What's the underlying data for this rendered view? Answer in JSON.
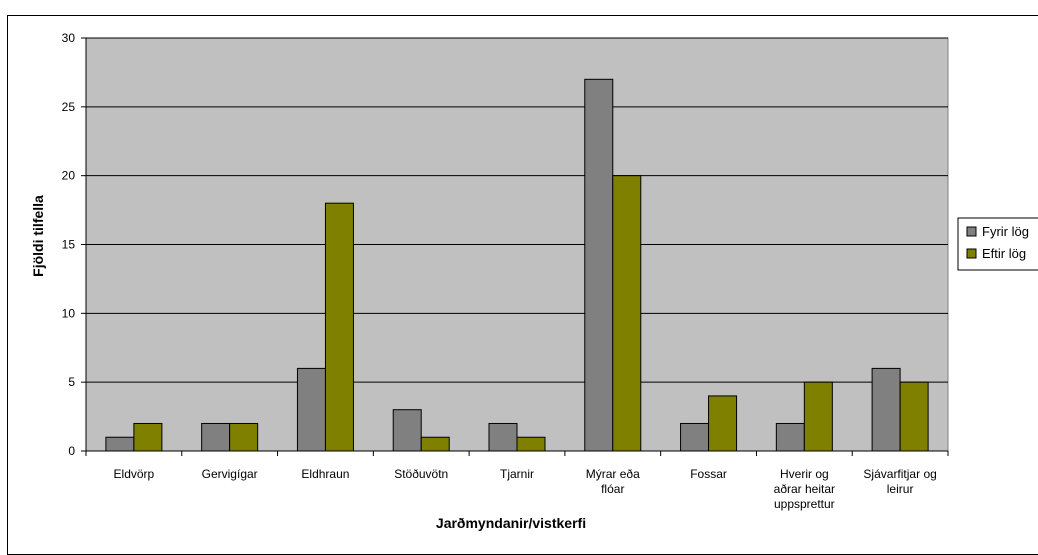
{
  "chart_data": {
    "type": "bar",
    "title": "",
    "xlabel": "Jarðmyndanir/vistkerfi",
    "ylabel": "Fjöldi tilfella",
    "ylim": [
      0,
      30
    ],
    "yticks": [
      0,
      5,
      10,
      15,
      20,
      25,
      30
    ],
    "grid": true,
    "legend_position": "right",
    "categories": [
      [
        "Eldvörp"
      ],
      [
        "Gervigígar"
      ],
      [
        "Eldhraun"
      ],
      [
        "Stöðuvötn"
      ],
      [
        "Tjarnir"
      ],
      [
        "Mýrar eða",
        "flóar"
      ],
      [
        "Fossar"
      ],
      [
        "Hverir og",
        "aðrar heitar",
        "uppsprettur"
      ],
      [
        "Sjávarfitjar og",
        "leirur"
      ]
    ],
    "series": [
      {
        "name": "Fyrir lög",
        "color": "#808080",
        "values": [
          1,
          2,
          6,
          3,
          2,
          27,
          2,
          2,
          6
        ]
      },
      {
        "name": "Eftir lög",
        "color": "#808000",
        "values": [
          2,
          2,
          18,
          1,
          1,
          20,
          4,
          5,
          5
        ]
      }
    ],
    "plot_background": "#c0c0c0"
  }
}
